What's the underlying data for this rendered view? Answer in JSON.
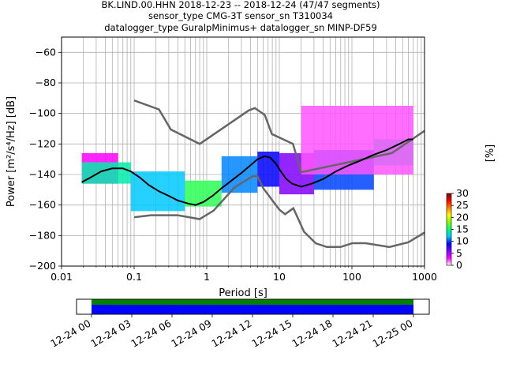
{
  "chart_data": {
    "type": "heatmap",
    "title_lines": [
      "BK.LIND.00.HHN   2018-12-23 -- 2018-12-24  (47/47 segments)",
      "sensor_type CMG-3T sensor_sn T310034",
      "datalogger_type GuralpMinimus+ datalogger_sn MINP-DF59"
    ],
    "xlabel": "Period [s]",
    "ylabel": "Power [m²/s⁴/Hz] [dB]",
    "xscale": "log",
    "xlim": [
      0.01,
      1000
    ],
    "ylim": [
      -200,
      -50
    ],
    "xticks": [
      {
        "value": 0.01,
        "label": "0.01"
      },
      {
        "value": 0.1,
        "label": "0.1"
      },
      {
        "value": 1,
        "label": "1"
      },
      {
        "value": 10,
        "label": "10"
      },
      {
        "value": 100,
        "label": "100"
      },
      {
        "value": 1000,
        "label": "1000"
      }
    ],
    "yticks": [
      -200,
      -180,
      -160,
      -140,
      -120,
      -100,
      -80,
      -60
    ],
    "grid": true,
    "colorbar": {
      "label": "[%]",
      "min": 0,
      "max": 30,
      "ticks": [
        0,
        5,
        10,
        15,
        20,
        25,
        30
      ],
      "colors": [
        "#ffffff",
        "#ff00ff",
        "#8000ff",
        "#0000ff",
        "#00c8ff",
        "#00ff80",
        "#80ff00",
        "#ffff00",
        "#ff8000",
        "#ff0000",
        "#800000"
      ]
    },
    "noise_model_high": [
      [
        0.1,
        -91.5
      ],
      [
        0.22,
        -97.4
      ],
      [
        0.32,
        -110.5
      ],
      [
        0.8,
        -120
      ],
      [
        3.8,
        -98
      ],
      [
        4.6,
        -96.5
      ],
      [
        6.3,
        -101
      ],
      [
        7.9,
        -113.5
      ],
      [
        15.4,
        -120
      ],
      [
        20,
        -138.5
      ],
      [
        354.8,
        -126
      ],
      [
        1000,
        -111.4
      ]
    ],
    "noise_model_low": [
      [
        0.1,
        -168
      ],
      [
        0.17,
        -166.7
      ],
      [
        0.4,
        -166.7
      ],
      [
        0.8,
        -169.2
      ],
      [
        1.24,
        -163.7
      ],
      [
        2.4,
        -148.6
      ],
      [
        4.3,
        -141.1
      ],
      [
        5,
        -141.1
      ],
      [
        6,
        -149
      ],
      [
        10,
        -163
      ],
      [
        12,
        -166
      ],
      [
        15.6,
        -162.1
      ],
      [
        21.9,
        -177.5
      ],
      [
        31.6,
        -185
      ],
      [
        45,
        -187.5
      ],
      [
        70,
        -187.5
      ],
      [
        101,
        -185
      ],
      [
        154,
        -185
      ],
      [
        328,
        -187.5
      ],
      [
        600,
        -184.4
      ],
      [
        1000,
        -178
      ]
    ],
    "mode_line": [
      [
        0.019,
        -145
      ],
      [
        0.025,
        -142
      ],
      [
        0.035,
        -138
      ],
      [
        0.05,
        -136
      ],
      [
        0.07,
        -136
      ],
      [
        0.09,
        -138
      ],
      [
        0.12,
        -142
      ],
      [
        0.16,
        -147
      ],
      [
        0.22,
        -151
      ],
      [
        0.3,
        -154
      ],
      [
        0.4,
        -157
      ],
      [
        0.55,
        -159
      ],
      [
        0.7,
        -160
      ],
      [
        0.9,
        -158
      ],
      [
        1.2,
        -154
      ],
      [
        1.6,
        -149
      ],
      [
        2.2,
        -144
      ],
      [
        3,
        -139
      ],
      [
        4,
        -134
      ],
      [
        5,
        -130
      ],
      [
        6.3,
        -128
      ],
      [
        7.5,
        -129
      ],
      [
        9,
        -133
      ],
      [
        10.5,
        -138
      ],
      [
        12.5,
        -143
      ],
      [
        15,
        -146
      ],
      [
        20,
        -148
      ],
      [
        28,
        -146
      ],
      [
        40,
        -143
      ],
      [
        60,
        -138
      ],
      [
        90,
        -134
      ],
      [
        130,
        -131
      ],
      [
        200,
        -127
      ],
      [
        300,
        -124
      ],
      [
        450,
        -120
      ],
      [
        600,
        -117
      ],
      [
        700,
        -117
      ]
    ],
    "psd_bands": [
      {
        "period": [
          0.019,
          0.06
        ],
        "db_min": -146,
        "db_max": -126,
        "percent": 3
      },
      {
        "period": [
          0.019,
          0.09
        ],
        "db_min": -146,
        "db_max": -132,
        "percent": 14
      },
      {
        "period": [
          0.09,
          0.5
        ],
        "db_min": -164,
        "db_max": -138,
        "percent": 12
      },
      {
        "period": [
          0.5,
          1.6
        ],
        "db_min": -161,
        "db_max": -144,
        "percent": 16
      },
      {
        "period": [
          1.6,
          5
        ],
        "db_min": -152,
        "db_max": -128,
        "percent": 11
      },
      {
        "period": [
          5,
          10
        ],
        "db_min": -148,
        "db_max": -125,
        "percent": 9
      },
      {
        "period": [
          10,
          30
        ],
        "db_min": -153,
        "db_max": -126,
        "percent": 6
      },
      {
        "period": [
          30,
          200
        ],
        "db_min": -150,
        "db_max": -124,
        "percent": 10
      },
      {
        "period": [
          200,
          700
        ],
        "db_min": -134,
        "db_max": -117,
        "percent": 14
      },
      {
        "period": [
          20,
          700
        ],
        "db_min": -140,
        "db_max": -95,
        "percent": 2
      }
    ],
    "timeline": {
      "ticks": [
        "12-24 00",
        "12-24 03",
        "12-24 06",
        "12-24 09",
        "12-24 12",
        "12-24 15",
        "12-24 18",
        "12-24 21",
        "12-25 00"
      ],
      "start": "12-23 22:30",
      "end": "12-25 01:30",
      "coverage": [
        {
          "from": "12-24 00",
          "to": "12-25 00",
          "color": "#008000"
        },
        {
          "from": "12-24 00",
          "to": "12-25 00",
          "color": "#0000ff"
        }
      ]
    }
  }
}
